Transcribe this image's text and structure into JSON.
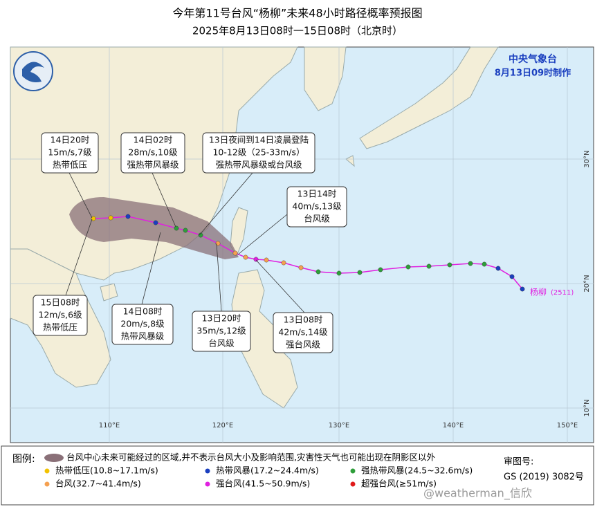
{
  "title": "今年第11号台风“杨柳”未来48小时路径概率预报图",
  "subtitle": "2025年8月13日08时一15日08时（北京时）",
  "agency": "中央气象台",
  "issued": "8月13日09时制作",
  "typhoon_label": "杨柳",
  "typhoon_code": "(2511)",
  "lon_labels": [
    "110°E",
    "120°E",
    "130°E",
    "140°E",
    "150°E"
  ],
  "lat_labels": [
    "30°N",
    "20°N",
    "10°N"
  ],
  "annotations": [
    {
      "lines": [
        "14日20时",
        "15m/s,7级",
        "热带低压"
      ]
    },
    {
      "lines": [
        "14日02时",
        "28m/s,10级",
        "强热带风暴级"
      ]
    },
    {
      "lines": [
        "13日夜间到14日凌晨登陆",
        "10-12级（25-33m/s）",
        "强热带风暴级或台风级"
      ]
    },
    {
      "lines": [
        "13日14时",
        "40m/s,13级",
        "台风级"
      ]
    },
    {
      "lines": [
        "15日08时",
        "12m/s,6级",
        "热带低压"
      ]
    },
    {
      "lines": [
        "14日08时",
        "20m/s,8级",
        "热带风暴级"
      ]
    },
    {
      "lines": [
        "13日20时",
        "35m/s,12级",
        "台风级"
      ]
    },
    {
      "lines": [
        "13日08时",
        "42m/s,14级",
        "强台风级"
      ]
    }
  ],
  "legend": {
    "title": "图例:",
    "cone": "台风中心未来可能经过的区域,并不表示台风大小及影响范围,灾害性天气也可能出现在阴影区以外",
    "items": [
      {
        "label": "热带低压(10.8~17.1m/s)",
        "color": "#f2c200"
      },
      {
        "label": "热带风暴(17.2~24.4m/s)",
        "color": "#1a3fbf"
      },
      {
        "label": "强热带风暴(24.5~32.6m/s)",
        "color": "#2e9e3a"
      },
      {
        "label": "台风(32.7~41.4m/s)",
        "color": "#f5a050"
      },
      {
        "label": "强台风(41.5~50.9m/s)",
        "color": "#e020e0"
      },
      {
        "label": "超强台风(≥51m/s)",
        "color": "#e01a1a"
      }
    ]
  },
  "review": {
    "label": "审图号:",
    "number": "GS (2019) 3082号"
  },
  "watermark": "@weatherman_信欣"
}
